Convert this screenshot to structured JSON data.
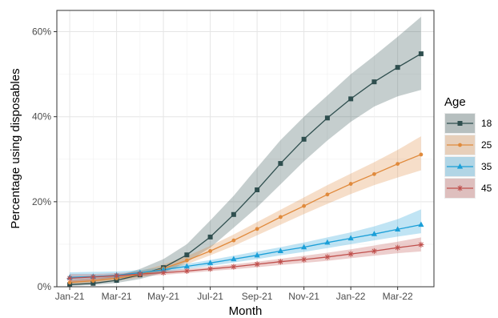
{
  "chart_data": {
    "type": "line",
    "title": "",
    "xlabel": "Month",
    "ylabel": "Percentage using disposables",
    "x": [
      "Jan-21",
      "Feb-21",
      "Mar-21",
      "Apr-21",
      "May-21",
      "Jun-21",
      "Jul-21",
      "Aug-21",
      "Sep-21",
      "Oct-21",
      "Nov-21",
      "Dec-21",
      "Jan-22",
      "Feb-22",
      "Mar-22",
      "Apr-22"
    ],
    "x_ticks": [
      "Jan-21",
      "Mar-21",
      "May-21",
      "Jul-21",
      "Sep-21",
      "Nov-21",
      "Jan-22",
      "Mar-22"
    ],
    "y_ticks": [
      0,
      20,
      40,
      60
    ],
    "y_tick_labels": [
      "0%",
      "20%",
      "40%",
      "60%"
    ],
    "ylim": [
      0,
      65
    ],
    "grid": true,
    "legend": {
      "title": "Age",
      "placement": "right"
    },
    "series": [
      {
        "name": "18",
        "color": "#2f4f4f",
        "marker": "square",
        "values": [
          0.5,
          0.8,
          1.5,
          2.8,
          4.5,
          7.5,
          11.7,
          17.0,
          22.8,
          29.0,
          34.7,
          39.7,
          44.2,
          48.2,
          51.6,
          54.8
        ],
        "lower": [
          0.2,
          0.4,
          0.9,
          1.8,
          3.3,
          5.8,
          9.2,
          13.9,
          18.7,
          24.1,
          29.5,
          34.4,
          38.8,
          42.4,
          44.8,
          46.3
        ],
        "upper": [
          1.4,
          1.8,
          2.5,
          4.2,
          6.5,
          10.0,
          15.6,
          21.4,
          28.0,
          34.5,
          40.0,
          45.0,
          50.0,
          54.3,
          58.8,
          63.5
        ]
      },
      {
        "name": "25",
        "color": "#e08a3c",
        "marker": "circle",
        "values": [
          1.0,
          1.4,
          2.0,
          2.9,
          4.3,
          6.2,
          8.4,
          10.9,
          13.6,
          16.4,
          19.0,
          21.7,
          24.2,
          26.5,
          28.9,
          31.1
        ],
        "lower": [
          0.6,
          0.9,
          1.4,
          2.2,
          3.5,
          5.3,
          7.4,
          9.6,
          12.1,
          14.6,
          17.1,
          19.5,
          21.8,
          23.9,
          25.7,
          27.4
        ],
        "upper": [
          1.6,
          2.1,
          2.8,
          3.7,
          5.2,
          7.2,
          9.6,
          12.3,
          15.2,
          18.1,
          21.0,
          23.9,
          26.6,
          29.3,
          32.2,
          35.4
        ]
      },
      {
        "name": "35",
        "color": "#1b9fd8",
        "marker": "triangle",
        "values": [
          2.2,
          2.4,
          2.7,
          3.3,
          4.0,
          4.8,
          5.6,
          6.5,
          7.4,
          8.4,
          9.3,
          10.4,
          11.4,
          12.4,
          13.5,
          14.6
        ],
        "lower": [
          1.4,
          1.8,
          2.2,
          2.8,
          3.4,
          4.2,
          4.9,
          5.7,
          6.5,
          7.4,
          8.2,
          9.1,
          10.0,
          10.9,
          11.8,
          12.6
        ],
        "upper": [
          3.4,
          3.5,
          3.6,
          3.9,
          4.6,
          5.4,
          6.3,
          7.3,
          8.3,
          9.3,
          10.4,
          11.6,
          12.8,
          14.2,
          15.9,
          18.2
        ]
      },
      {
        "name": "45",
        "color": "#c0504d",
        "marker": "asterisk",
        "values": [
          2.0,
          2.3,
          2.6,
          3.0,
          3.3,
          3.7,
          4.2,
          4.7,
          5.3,
          5.9,
          6.4,
          7.0,
          7.7,
          8.4,
          9.2,
          9.9
        ],
        "lower": [
          1.1,
          1.5,
          1.9,
          2.4,
          2.8,
          3.2,
          3.7,
          4.1,
          4.6,
          5.1,
          5.6,
          6.1,
          6.7,
          7.3,
          7.9,
          8.3
        ],
        "upper": [
          3.0,
          3.0,
          3.2,
          3.5,
          3.8,
          4.2,
          4.7,
          5.3,
          5.9,
          6.6,
          7.3,
          8.0,
          8.8,
          9.7,
          10.6,
          11.6
        ]
      }
    ]
  }
}
